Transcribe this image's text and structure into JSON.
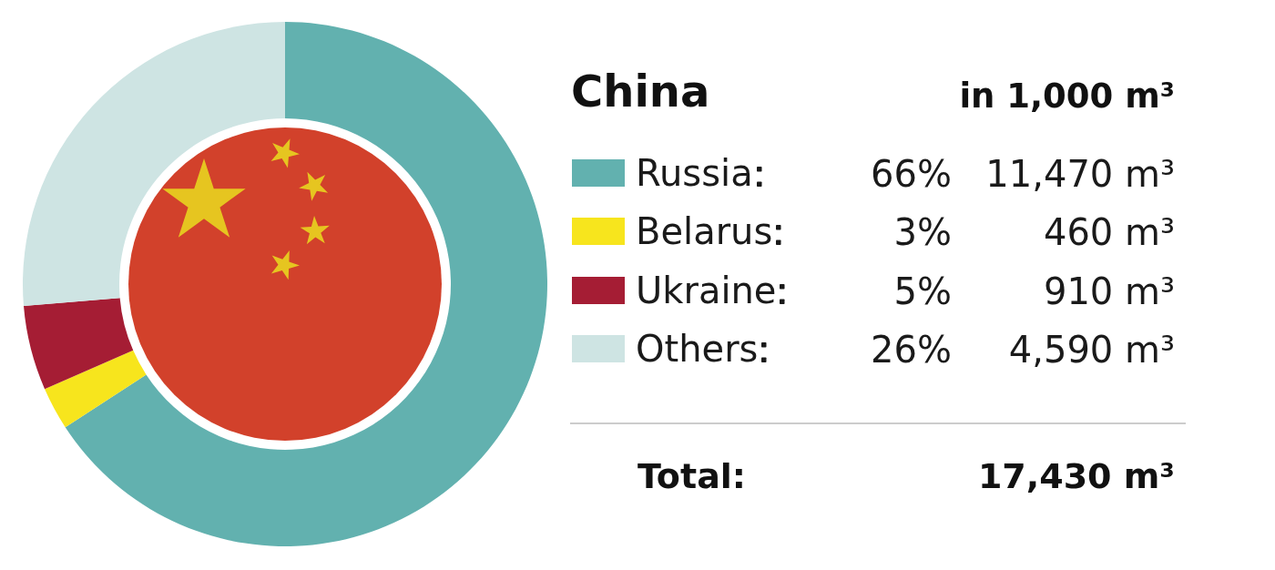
{
  "chart_data": {
    "type": "donut",
    "title": "China",
    "subtitle": "in 1,000 m³",
    "categories": [
      "Russia",
      "Belarus",
      "Ukraine",
      "Others"
    ],
    "values": [
      11470,
      460,
      910,
      4590
    ],
    "colors": [
      "#62b1af",
      "#f7e51d",
      "#a51d34",
      "#cee4e3"
    ],
    "value_labels": [
      "11,470 m³",
      "460 m³",
      "910 m³",
      "4,590 m³"
    ],
    "annotations": [
      "66%",
      "3%",
      "5%",
      "26%",
      "Total:"
    ],
    "totals": [
      "17,430 m³"
    ],
    "legend": "right"
  }
}
